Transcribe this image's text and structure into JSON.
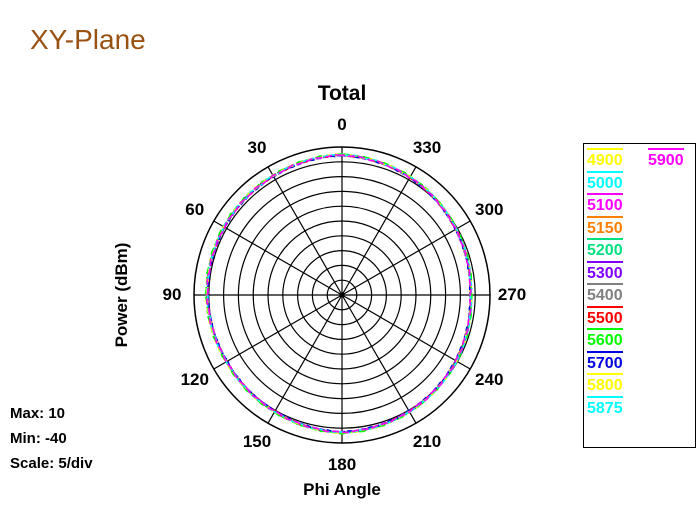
{
  "page_title": "XY-Plane",
  "stats": {
    "max": "Max: 10",
    "min": "Min: -40",
    "scale": "Scale: 5/div"
  },
  "chart_data": {
    "type": "polar-line",
    "title": "Total",
    "xlabel": "Phi Angle",
    "ylabel": "Power  (dBm)",
    "r_range": [
      -40,
      10
    ],
    "r_step": 5,
    "angle_ticks": [
      0,
      30,
      60,
      90,
      120,
      150,
      180,
      210,
      240,
      270,
      300,
      330
    ],
    "angle_direction": "counter-clockwise, 0 at top",
    "grid": true,
    "legend_position": "right",
    "angles": [
      0,
      30,
      60,
      90,
      120,
      150,
      180,
      210,
      240,
      270,
      300,
      330
    ],
    "series": [
      {
        "name": "4900",
        "color": "#ffff00",
        "values": [
          7.5,
          6.6,
          6.1,
          5.8,
          5.2,
          5.6,
          6.6,
          5.6,
          4.6,
          3.6,
          4.6,
          6.1
        ]
      },
      {
        "name": "5000",
        "color": "#00ffff",
        "values": [
          7.4,
          6.5,
          6.0,
          5.6,
          5.1,
          5.5,
          6.5,
          5.5,
          4.8,
          3.5,
          4.5,
          6.0
        ]
      },
      {
        "name": "5100",
        "color": "#ff00ff",
        "values": [
          7.3,
          6.4,
          6.0,
          5.5,
          5.0,
          5.4,
          6.4,
          5.4,
          4.5,
          3.4,
          4.4,
          5.9
        ]
      },
      {
        "name": "5150",
        "color": "#ff8000",
        "values": [
          7.3,
          6.5,
          5.9,
          5.4,
          5.0,
          5.5,
          6.5,
          5.5,
          4.4,
          3.4,
          4.5,
          6.0
        ]
      },
      {
        "name": "5200",
        "color": "#00e080",
        "values": [
          7.4,
          6.6,
          6.1,
          5.7,
          5.1,
          5.6,
          6.4,
          5.6,
          4.6,
          3.5,
          4.6,
          6.1
        ]
      },
      {
        "name": "5300",
        "color": "#8000ff",
        "values": [
          7.2,
          6.3,
          5.8,
          5.3,
          4.9,
          5.3,
          6.3,
          5.3,
          4.3,
          3.3,
          4.3,
          5.8
        ]
      },
      {
        "name": "5400",
        "color": "#808080",
        "values": [
          7.3,
          6.4,
          5.9,
          5.4,
          4.9,
          5.4,
          6.4,
          5.4,
          4.4,
          3.4,
          4.4,
          5.9
        ]
      },
      {
        "name": "5500",
        "color": "#ff0000",
        "values": [
          7.2,
          6.4,
          5.9,
          5.4,
          5.0,
          5.4,
          6.5,
          5.4,
          4.5,
          3.5,
          4.4,
          5.9
        ]
      },
      {
        "name": "5600",
        "color": "#00ff00",
        "values": [
          7.5,
          6.7,
          6.2,
          5.9,
          5.2,
          5.7,
          6.7,
          5.7,
          4.7,
          3.7,
          4.7,
          6.2
        ]
      },
      {
        "name": "5700",
        "color": "#0000e0",
        "values": [
          7.2,
          6.3,
          5.8,
          5.3,
          4.8,
          5.3,
          6.3,
          5.3,
          4.3,
          3.3,
          4.3,
          5.8
        ]
      },
      {
        "name": "5800",
        "color": "#ffff00",
        "values": [
          7.4,
          6.5,
          6.0,
          5.6,
          5.1,
          5.5,
          6.6,
          5.5,
          4.6,
          3.5,
          4.5,
          6.0
        ]
      },
      {
        "name": "5875",
        "color": "#00ffff",
        "values": [
          7.4,
          6.5,
          6.0,
          5.5,
          5.0,
          5.5,
          6.5,
          5.5,
          4.7,
          3.6,
          4.5,
          6.0
        ]
      },
      {
        "name": "5900",
        "color": "#ff00ff",
        "values": [
          7.3,
          6.4,
          5.9,
          5.5,
          5.0,
          5.4,
          6.4,
          5.4,
          4.5,
          3.4,
          4.4,
          5.9
        ]
      }
    ]
  }
}
